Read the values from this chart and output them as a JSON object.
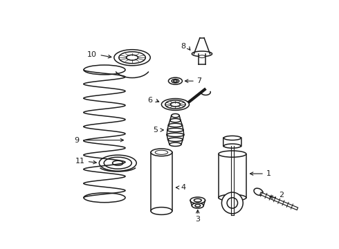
{
  "background_color": "#ffffff",
  "line_color": "#1a1a1a",
  "figsize": [
    4.9,
    3.6
  ],
  "dpi": 100,
  "xlim": [
    0,
    490
  ],
  "ylim": [
    0,
    360
  ]
}
